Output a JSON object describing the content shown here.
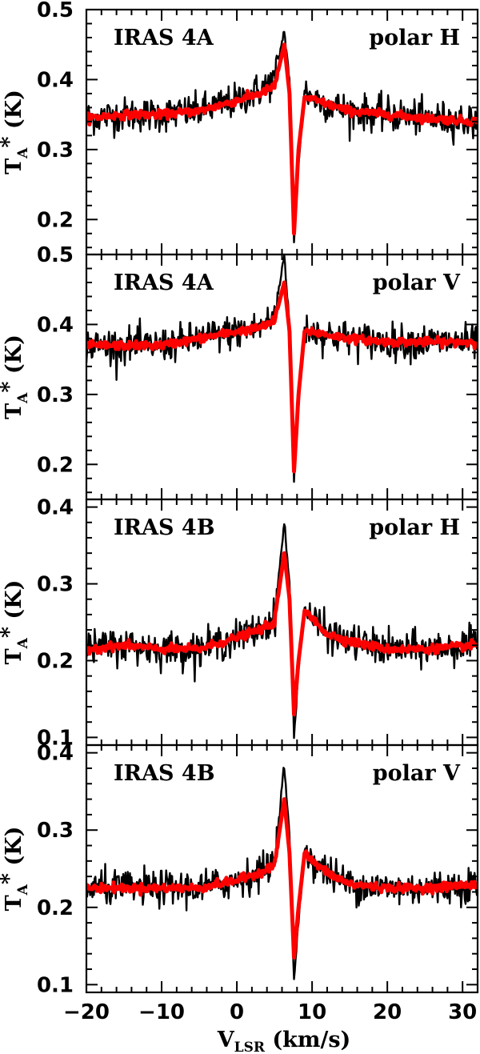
{
  "chart_data": {
    "type": "line",
    "layout": "4 vertically stacked panels sharing the x axis",
    "xlabel_main": "V",
    "xlabel_sub": "LSR",
    "xlabel_unit": "(km/s)",
    "xlim": [
      -20,
      32
    ],
    "x_ticks": [
      -20,
      -10,
      0,
      10,
      20,
      30
    ],
    "x_tick_labels": [
      "−20",
      "−10",
      "0",
      "10",
      "20",
      "30"
    ],
    "ylabel_main": "T",
    "ylabel_sub": "A",
    "ylabel_star": "*",
    "ylabel_unit": "(K)",
    "series_colors": {
      "observed": "#000000",
      "model": "#ff0000"
    },
    "panels": [
      {
        "source": "IRAS 4A",
        "polarization": "polar H",
        "ylim": [
          0.15,
          0.5
        ],
        "y_ticks": [
          0.2,
          0.3,
          0.4,
          0.5
        ],
        "y_tick_labels": [
          "0.2",
          "0.3",
          "0.4",
          "0.5"
        ],
        "series": [
          {
            "role": "observed",
            "x": [
              -20,
              -15,
              -10,
              -5,
              0,
              3,
              5,
              6.3,
              7.0,
              7.6,
              8.2,
              9.0,
              10,
              12,
              15,
              20,
              25,
              32
            ],
            "values": [
              0.345,
              0.35,
              0.35,
              0.355,
              0.37,
              0.385,
              0.4,
              0.47,
              0.4,
              0.165,
              0.28,
              0.385,
              0.375,
              0.365,
              0.355,
              0.35,
              0.345,
              0.34
            ]
          },
          {
            "role": "model",
            "x": [
              -20,
              -15,
              -10,
              -5,
              0,
              3,
              5,
              6.3,
              7.0,
              7.6,
              8.2,
              9.0,
              10,
              12,
              15,
              20,
              25,
              32
            ],
            "values": [
              0.345,
              0.35,
              0.35,
              0.355,
              0.37,
              0.38,
              0.39,
              0.45,
              0.38,
              0.18,
              0.3,
              0.375,
              0.372,
              0.365,
              0.355,
              0.35,
              0.345,
              0.34
            ]
          }
        ]
      },
      {
        "source": "IRAS 4A",
        "polarization": "polar V",
        "ylim": [
          0.15,
          0.5
        ],
        "y_ticks": [
          0.2,
          0.3,
          0.4,
          0.5
        ],
        "y_tick_labels": [
          "0.2",
          "0.3",
          "0.4",
          "0.5"
        ],
        "series": [
          {
            "role": "observed",
            "x": [
              -20,
              -15,
              -10,
              -5,
              0,
              3,
              5,
              6.3,
              7.0,
              7.6,
              8.2,
              9.0,
              10,
              12,
              15,
              20,
              25,
              32
            ],
            "values": [
              0.37,
              0.37,
              0.37,
              0.38,
              0.39,
              0.395,
              0.41,
              0.5,
              0.4,
              0.175,
              0.29,
              0.395,
              0.39,
              0.385,
              0.38,
              0.375,
              0.375,
              0.375
            ]
          },
          {
            "role": "model",
            "x": [
              -20,
              -15,
              -10,
              -5,
              0,
              3,
              5,
              6.3,
              7.0,
              7.6,
              8.2,
              9.0,
              10,
              12,
              15,
              20,
              25,
              32
            ],
            "values": [
              0.37,
              0.37,
              0.37,
              0.38,
              0.39,
              0.395,
              0.405,
              0.46,
              0.39,
              0.19,
              0.3,
              0.39,
              0.39,
              0.385,
              0.38,
              0.375,
              0.375,
              0.375
            ]
          }
        ]
      },
      {
        "source": "IRAS 4B",
        "polarization": "polar H",
        "ylim": [
          0.09,
          0.41
        ],
        "y_ticks": [
          0.1,
          0.2,
          0.3,
          0.4
        ],
        "y_tick_labels": [
          "0.1",
          "0.2",
          "0.3",
          "0.4"
        ],
        "series": [
          {
            "role": "observed",
            "x": [
              -20,
              -15,
              -10,
              -5,
              0,
              3,
              5,
              6.3,
              7.0,
              7.6,
              8.2,
              9.0,
              10,
              12,
              15,
              20,
              25,
              32
            ],
            "values": [
              0.215,
              0.22,
              0.215,
              0.215,
              0.23,
              0.24,
              0.255,
              0.38,
              0.3,
              0.1,
              0.19,
              0.27,
              0.255,
              0.235,
              0.225,
              0.215,
              0.215,
              0.22
            ]
          },
          {
            "role": "model",
            "x": [
              -20,
              -15,
              -10,
              -5,
              0,
              3,
              5,
              6.3,
              7.0,
              7.6,
              8.2,
              9.0,
              10,
              12,
              15,
              20,
              25,
              32
            ],
            "values": [
              0.215,
              0.22,
              0.215,
              0.215,
              0.23,
              0.24,
              0.25,
              0.34,
              0.28,
              0.13,
              0.2,
              0.265,
              0.255,
              0.235,
              0.225,
              0.215,
              0.215,
              0.22
            ]
          }
        ]
      },
      {
        "source": "IRAS 4B",
        "polarization": "polar V",
        "ylim": [
          0.09,
          0.41
        ],
        "y_ticks": [
          0.1,
          0.2,
          0.3,
          0.4
        ],
        "y_tick_labels": [
          "0.1",
          "0.2",
          "0.3",
          "0.4"
        ],
        "series": [
          {
            "role": "observed",
            "x": [
              -20,
              -15,
              -10,
              -5,
              0,
              3,
              5,
              6.3,
              7.0,
              7.6,
              8.2,
              9.0,
              10,
              12,
              15,
              20,
              25,
              32
            ],
            "values": [
              0.225,
              0.225,
              0.225,
              0.225,
              0.235,
              0.245,
              0.26,
              0.385,
              0.29,
              0.105,
              0.18,
              0.275,
              0.26,
              0.245,
              0.23,
              0.225,
              0.225,
              0.23
            ]
          },
          {
            "role": "model",
            "x": [
              -20,
              -15,
              -10,
              -5,
              0,
              3,
              5,
              6.3,
              7.0,
              7.6,
              8.2,
              9.0,
              10,
              12,
              15,
              20,
              25,
              32
            ],
            "values": [
              0.225,
              0.225,
              0.225,
              0.225,
              0.235,
              0.245,
              0.255,
              0.34,
              0.27,
              0.135,
              0.2,
              0.27,
              0.26,
              0.245,
              0.23,
              0.225,
              0.225,
              0.23
            ]
          }
        ]
      }
    ]
  }
}
